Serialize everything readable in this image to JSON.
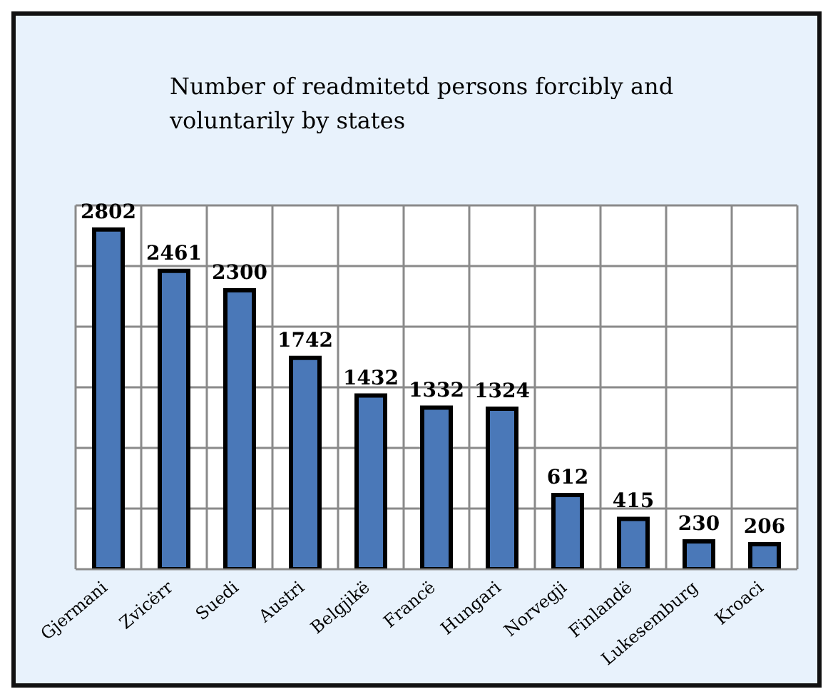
{
  "chart_data": {
    "type": "bar",
    "title": "Number of readmitetd persons forcibly and voluntarily by states",
    "categories": [
      "Gjermani",
      "Zvicërr",
      "Suedi",
      "Austri",
      "Belgjikë",
      "Francë",
      "Hungari",
      "Norvegji",
      "Finlandë",
      "Lukesemburg",
      "Kroaci"
    ],
    "values": [
      2802,
      2461,
      2300,
      1742,
      1432,
      1332,
      1324,
      612,
      415,
      230,
      206
    ],
    "color": "#4a78b8",
    "data_labels": true,
    "grid": true,
    "tick_labels": "x",
    "ylim": [
      0,
      3000
    ]
  }
}
